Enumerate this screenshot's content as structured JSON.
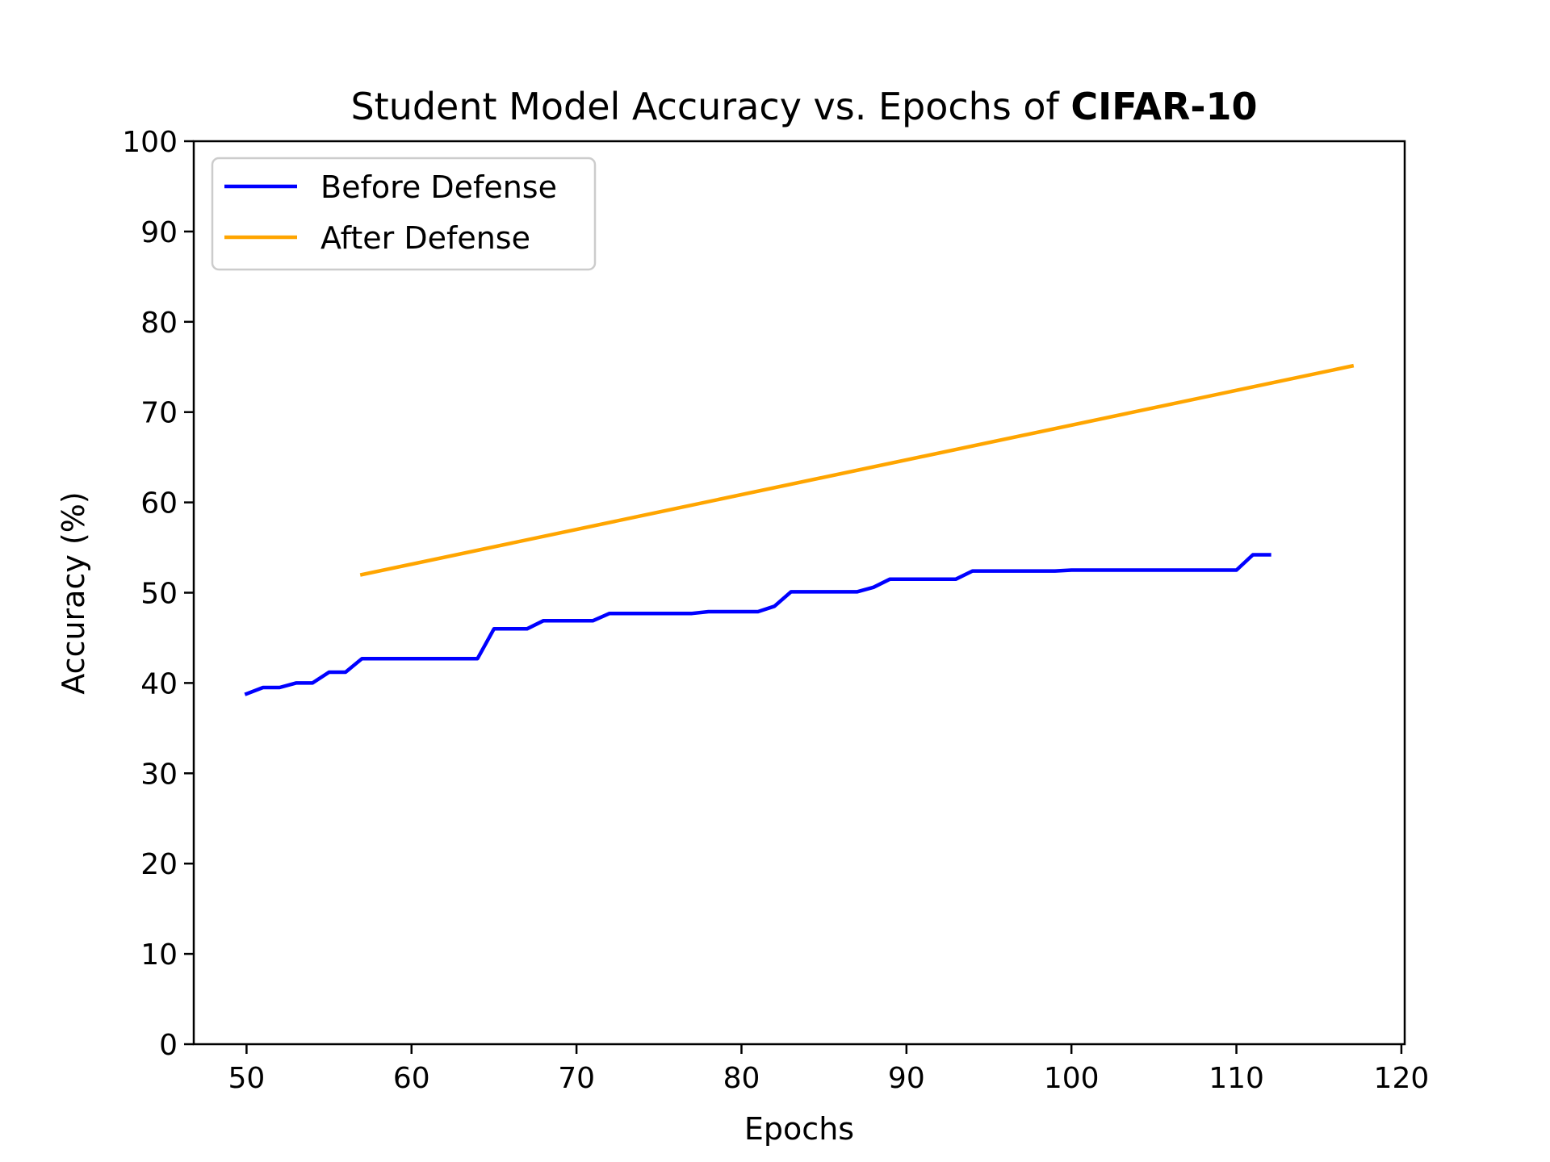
{
  "chart_data": {
    "type": "line",
    "title": {
      "prefix": "Student Model Accuracy vs. Epochs of ",
      "bold": "CIFAR",
      "suffix": "-10"
    },
    "xlabel": "Epochs",
    "ylabel": "Accuracy (%)",
    "xlim": [
      46.8,
      120.2
    ],
    "ylim": [
      0,
      100
    ],
    "xticks": [
      50,
      60,
      70,
      80,
      90,
      100,
      110,
      120
    ],
    "yticks": [
      0,
      10,
      20,
      30,
      40,
      50,
      60,
      70,
      80,
      90,
      100
    ],
    "grid": false,
    "legend_position": "top-left",
    "series": [
      {
        "name": "Before Defense",
        "color": "#0000ff",
        "x": [
          50,
          51,
          52,
          53,
          54,
          55,
          56,
          57,
          58,
          59,
          60,
          61,
          62,
          63,
          64,
          65,
          66,
          67,
          68,
          69,
          70,
          71,
          72,
          73,
          74,
          75,
          76,
          77,
          78,
          79,
          80,
          81,
          82,
          83,
          84,
          85,
          86,
          87,
          88,
          89,
          90,
          91,
          92,
          93,
          94,
          95,
          96,
          97,
          98,
          99,
          100,
          101,
          102,
          103,
          104,
          105,
          106,
          107,
          108,
          109,
          110,
          111,
          112
        ],
        "y": [
          38.8,
          39.5,
          39.5,
          40.0,
          40.0,
          41.2,
          41.2,
          42.7,
          42.7,
          42.7,
          42.7,
          42.7,
          42.7,
          42.7,
          42.7,
          46.0,
          46.0,
          46.0,
          46.9,
          46.9,
          46.9,
          46.9,
          47.7,
          47.7,
          47.7,
          47.7,
          47.7,
          47.7,
          47.9,
          47.9,
          47.9,
          47.9,
          48.5,
          50.1,
          50.1,
          50.1,
          50.1,
          50.1,
          50.6,
          51.5,
          51.5,
          51.5,
          51.5,
          51.5,
          52.4,
          52.4,
          52.4,
          52.4,
          52.4,
          52.4,
          52.5,
          52.5,
          52.5,
          52.5,
          52.5,
          52.5,
          52.5,
          52.5,
          52.5,
          52.5,
          52.5,
          54.2,
          54.2
        ]
      },
      {
        "name": "After Defense",
        "color": "#ffa500",
        "x": [
          57,
          117
        ],
        "y": [
          52.0,
          75.1
        ]
      }
    ]
  }
}
